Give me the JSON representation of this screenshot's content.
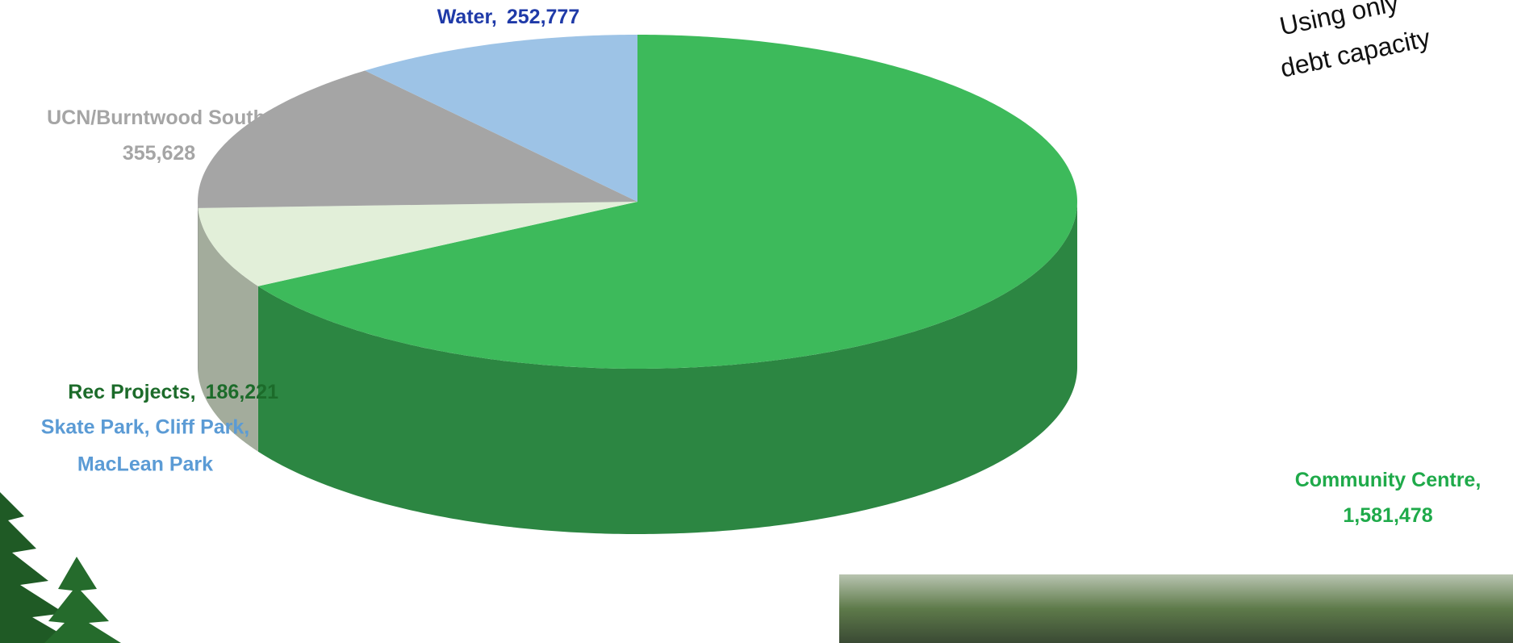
{
  "chart_data": {
    "type": "pie3d",
    "categories": [
      "Community Centre,",
      "Rec Projects,",
      "UCN/Burntwood South,",
      "Water,"
    ],
    "values": [
      1581478,
      186221,
      355628,
      252777
    ],
    "value_labels": [
      "1,581,478",
      "186,221",
      "355,628",
      "252,777"
    ],
    "colors": [
      "#3dba5b",
      "#e2efd9",
      "#a5a5a5",
      "#9dc3e6"
    ],
    "label_colors": [
      "#1faa4a",
      "#1c6b2a",
      "#a5a5a5",
      "#1f3aa8"
    ],
    "sublabel": {
      "category": 1,
      "lines": [
        "Skate Park, Cliff Park,",
        "MacLean Park"
      ],
      "color": "#5b9bd5"
    },
    "annotation": [
      "Using only",
      "debt capacity"
    ]
  }
}
